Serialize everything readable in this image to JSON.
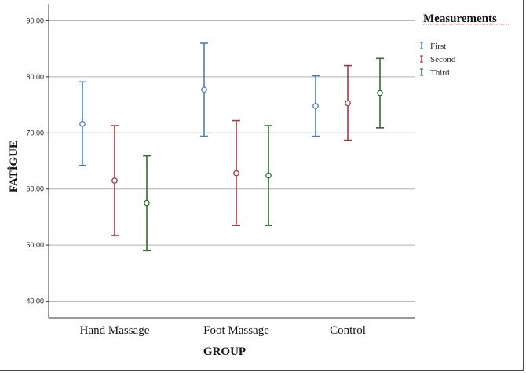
{
  "chart_data": {
    "type": "errorbar",
    "xlabel": "GROUP",
    "ylabel": "FATİGUE",
    "ylim": [
      37,
      93
    ],
    "yticks": [
      "40,00",
      "50,00",
      "60,00",
      "70,00",
      "80,00",
      "90,00"
    ],
    "ytick_values": [
      40,
      50,
      60,
      70,
      80,
      90
    ],
    "grid": true,
    "legend": {
      "title": "Measurements",
      "position": "right"
    },
    "categories": [
      "Hand Massage",
      "Foot Massage",
      "Control"
    ],
    "series": [
      {
        "name": "First",
        "color": "#4a7ebb",
        "points": [
          {
            "mean": 71.6,
            "low": 64.2,
            "high": 79.1
          },
          {
            "mean": 77.7,
            "low": 69.4,
            "high": 86.0
          },
          {
            "mean": 74.8,
            "low": 69.4,
            "high": 80.2
          }
        ]
      },
      {
        "name": "Second",
        "color": "#a23a45",
        "points": [
          {
            "mean": 61.5,
            "low": 51.7,
            "high": 71.3
          },
          {
            "mean": 62.8,
            "low": 53.5,
            "high": 72.2
          },
          {
            "mean": 75.3,
            "low": 68.7,
            "high": 82.0
          }
        ]
      },
      {
        "name": "Third",
        "color": "#2e6d2e",
        "points": [
          {
            "mean": 57.5,
            "low": 49.0,
            "high": 65.9
          },
          {
            "mean": 62.4,
            "low": 53.5,
            "high": 71.3
          },
          {
            "mean": 77.1,
            "low": 70.9,
            "high": 83.3
          }
        ]
      }
    ]
  }
}
